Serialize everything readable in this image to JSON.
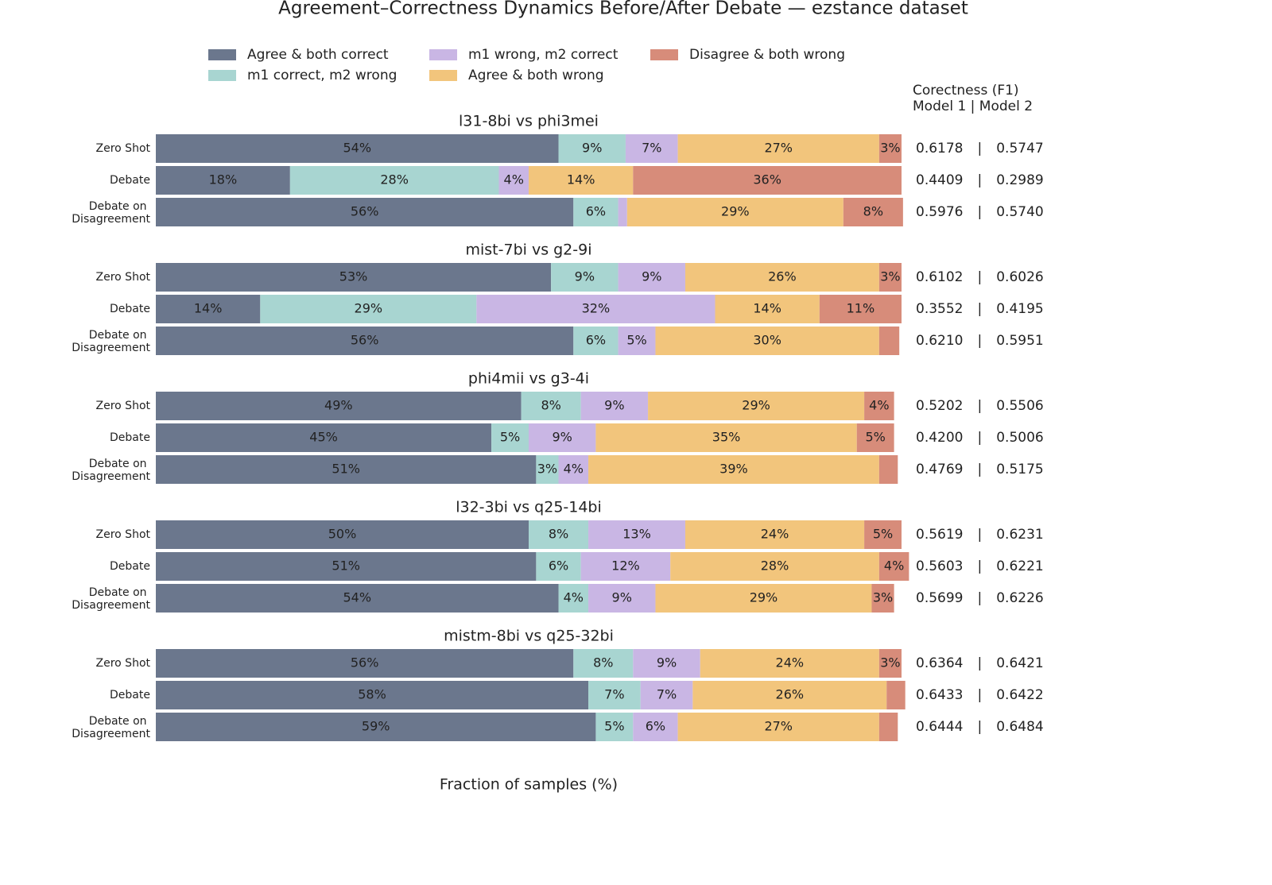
{
  "title": "Agreement–Correctness Dynamics Before/After Debate — ezstance dataset",
  "xlabel": "Fraction of samples (%)",
  "f1_header": [
    "Corectness (F1)",
    "Model 1 | Model 2"
  ],
  "f1_separator": "|",
  "chart_data": [
    {
      "type": "bar",
      "orientation": "horizontal",
      "stacked": true,
      "title": "l31-8bi vs phi3mei",
      "categories": [
        "Zero Shot",
        "Debate",
        "Debate on Disagreement"
      ],
      "xlim": [
        0,
        100
      ],
      "series": [
        {
          "name": "Agree & both correct",
          "color": "#6b778d",
          "values": [
            54,
            18,
            56
          ],
          "value_labels": [
            "54%",
            "18%",
            "56%"
          ]
        },
        {
          "name": "m1 correct, m2 wrong",
          "color": "#a8d5d1",
          "values": [
            9,
            28,
            6
          ],
          "value_labels": [
            "9%",
            "28%",
            "6%"
          ]
        },
        {
          "name": "m1 wrong, m2 correct",
          "color": "#c9b6e4",
          "values": [
            7,
            4,
            1.2
          ],
          "value_labels": [
            "7%",
            "4%",
            null
          ]
        },
        {
          "name": "Agree & both wrong",
          "color": "#f2c57c",
          "values": [
            27,
            14,
            29
          ],
          "value_labels": [
            "27%",
            "14%",
            "29%"
          ]
        },
        {
          "name": "Disagree & both wrong",
          "color": "#d78c7a",
          "values": [
            3,
            36,
            8
          ],
          "value_labels": [
            "3%",
            "36%",
            "8%"
          ]
        }
      ],
      "f1": [
        [
          "0.6178",
          "0.5747"
        ],
        [
          "0.4409",
          "0.2989"
        ],
        [
          "0.5976",
          "0.5740"
        ]
      ]
    },
    {
      "type": "bar",
      "orientation": "horizontal",
      "stacked": true,
      "title": "mist-7bi vs g2-9i",
      "categories": [
        "Zero Shot",
        "Debate",
        "Debate on Disagreement"
      ],
      "xlim": [
        0,
        100
      ],
      "series": [
        {
          "name": "Agree & both correct",
          "color": "#6b778d",
          "values": [
            53,
            14,
            56
          ],
          "value_labels": [
            "53%",
            "14%",
            "56%"
          ]
        },
        {
          "name": "m1 correct, m2 wrong",
          "color": "#a8d5d1",
          "values": [
            9,
            29,
            6
          ],
          "value_labels": [
            "9%",
            "29%",
            "6%"
          ]
        },
        {
          "name": "m1 wrong, m2 correct",
          "color": "#c9b6e4",
          "values": [
            9,
            32,
            5
          ],
          "value_labels": [
            "9%",
            "32%",
            "5%"
          ]
        },
        {
          "name": "Agree & both wrong",
          "color": "#f2c57c",
          "values": [
            26,
            14,
            30
          ],
          "value_labels": [
            "26%",
            "14%",
            "30%"
          ]
        },
        {
          "name": "Disagree & both wrong",
          "color": "#d78c7a",
          "values": [
            3,
            11,
            2.7
          ],
          "value_labels": [
            "3%",
            "11%",
            null
          ]
        }
      ],
      "f1": [
        [
          "0.6102",
          "0.6026"
        ],
        [
          "0.3552",
          "0.4195"
        ],
        [
          "0.6210",
          "0.5951"
        ]
      ]
    },
    {
      "type": "bar",
      "orientation": "horizontal",
      "stacked": true,
      "title": "phi4mii vs g3-4i",
      "categories": [
        "Zero Shot",
        "Debate",
        "Debate on Disagreement"
      ],
      "xlim": [
        0,
        100
      ],
      "series": [
        {
          "name": "Agree & both correct",
          "color": "#6b778d",
          "values": [
            49,
            45,
            51
          ],
          "value_labels": [
            "49%",
            "45%",
            "51%"
          ]
        },
        {
          "name": "m1 correct, m2 wrong",
          "color": "#a8d5d1",
          "values": [
            8,
            5,
            3
          ],
          "value_labels": [
            "8%",
            "5%",
            "3%"
          ]
        },
        {
          "name": "m1 wrong, m2 correct",
          "color": "#c9b6e4",
          "values": [
            9,
            9,
            4
          ],
          "value_labels": [
            "9%",
            "9%",
            "4%"
          ]
        },
        {
          "name": "Agree & both wrong",
          "color": "#f2c57c",
          "values": [
            29,
            35,
            39
          ],
          "value_labels": [
            "29%",
            "35%",
            "39%"
          ]
        },
        {
          "name": "Disagree & both wrong",
          "color": "#d78c7a",
          "values": [
            4,
            5,
            2.5
          ],
          "value_labels": [
            "4%",
            "5%",
            null
          ]
        }
      ],
      "f1": [
        [
          "0.5202",
          "0.5506"
        ],
        [
          "0.4200",
          "0.5006"
        ],
        [
          "0.4769",
          "0.5175"
        ]
      ]
    },
    {
      "type": "bar",
      "orientation": "horizontal",
      "stacked": true,
      "title": "l32-3bi vs q25-14bi",
      "categories": [
        "Zero Shot",
        "Debate",
        "Debate on Disagreement"
      ],
      "xlim": [
        0,
        100
      ],
      "series": [
        {
          "name": "Agree & both correct",
          "color": "#6b778d",
          "values": [
            50,
            51,
            54
          ],
          "value_labels": [
            "50%",
            "51%",
            "54%"
          ]
        },
        {
          "name": "m1 correct, m2 wrong",
          "color": "#a8d5d1",
          "values": [
            8,
            6,
            4
          ],
          "value_labels": [
            "8%",
            "6%",
            "4%"
          ]
        },
        {
          "name": "m1 wrong, m2 correct",
          "color": "#c9b6e4",
          "values": [
            13,
            12,
            9
          ],
          "value_labels": [
            "13%",
            "12%",
            "9%"
          ]
        },
        {
          "name": "Agree & both wrong",
          "color": "#f2c57c",
          "values": [
            24,
            28,
            29
          ],
          "value_labels": [
            "24%",
            "28%",
            "29%"
          ]
        },
        {
          "name": "Disagree & both wrong",
          "color": "#d78c7a",
          "values": [
            5,
            4,
            3
          ],
          "value_labels": [
            "5%",
            "4%",
            "3%"
          ]
        }
      ],
      "f1": [
        [
          "0.5619",
          "0.6231"
        ],
        [
          "0.5603",
          "0.6221"
        ],
        [
          "0.5699",
          "0.6226"
        ]
      ]
    },
    {
      "type": "bar",
      "orientation": "horizontal",
      "stacked": true,
      "title": "mistm-8bi vs q25-32bi",
      "categories": [
        "Zero Shot",
        "Debate",
        "Debate on Disagreement"
      ],
      "xlim": [
        0,
        100
      ],
      "series": [
        {
          "name": "Agree & both correct",
          "color": "#6b778d",
          "values": [
            56,
            58,
            59
          ],
          "value_labels": [
            "56%",
            "58%",
            "59%"
          ]
        },
        {
          "name": "m1 correct, m2 wrong",
          "color": "#a8d5d1",
          "values": [
            8,
            7,
            5
          ],
          "value_labels": [
            "8%",
            "7%",
            "5%"
          ]
        },
        {
          "name": "m1 wrong, m2 correct",
          "color": "#c9b6e4",
          "values": [
            9,
            7,
            6
          ],
          "value_labels": [
            "9%",
            "7%",
            "6%"
          ]
        },
        {
          "name": "Agree & both wrong",
          "color": "#f2c57c",
          "values": [
            24,
            26,
            27
          ],
          "value_labels": [
            "24%",
            "26%",
            "27%"
          ]
        },
        {
          "name": "Disagree & both wrong",
          "color": "#d78c7a",
          "values": [
            3,
            2.5,
            2.5
          ],
          "value_labels": [
            "3%",
            null,
            null
          ]
        }
      ],
      "f1": [
        [
          "0.6364",
          "0.6421"
        ],
        [
          "0.6433",
          "0.6422"
        ],
        [
          "0.6444",
          "0.6484"
        ]
      ]
    }
  ]
}
